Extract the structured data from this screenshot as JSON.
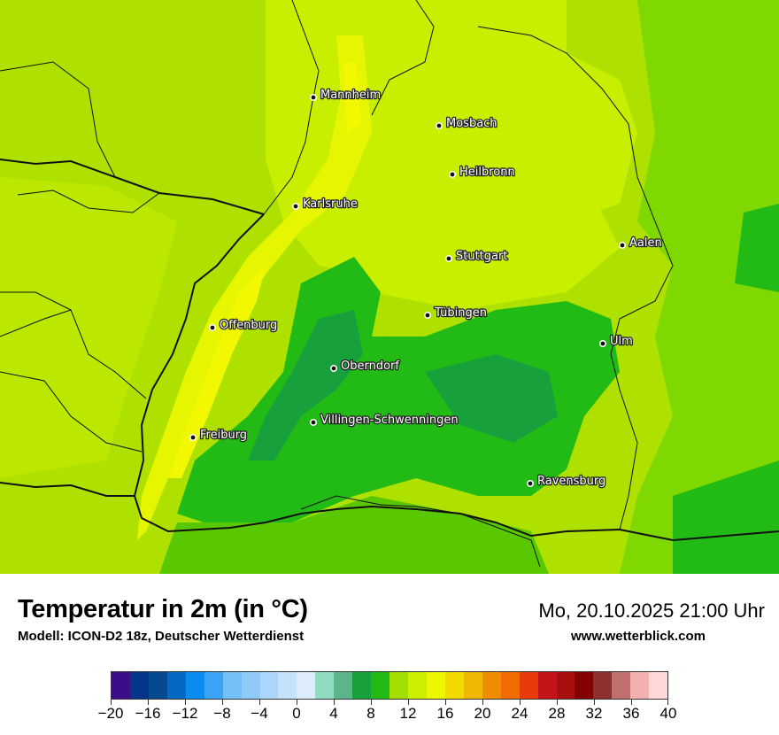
{
  "map": {
    "cities": [
      {
        "name": "Mannheim",
        "dot": [
          354,
          110
        ]
      },
      {
        "name": "Mosbach",
        "dot": [
          496,
          142
        ]
      },
      {
        "name": "Heilbronn",
        "dot": [
          511,
          197
        ]
      },
      {
        "name": "Karlsruhe",
        "dot": [
          334,
          233
        ]
      },
      {
        "name": "Aalen",
        "dot": [
          703,
          277
        ]
      },
      {
        "name": "Stuttgart",
        "dot": [
          507,
          292
        ]
      },
      {
        "name": "Tübingen",
        "dot": [
          483,
          356
        ]
      },
      {
        "name": "Offenburg",
        "dot": [
          240,
          370
        ]
      },
      {
        "name": "Ulm",
        "dot": [
          681,
          388
        ]
      },
      {
        "name": "Oberndorf",
        "dot": [
          377,
          416
        ]
      },
      {
        "name": "Villingen-Schwenningen",
        "dot": [
          354,
          477
        ]
      },
      {
        "name": "Freiburg",
        "dot": [
          218,
          494
        ]
      },
      {
        "name": "Ravensburg",
        "dot": [
          599,
          546
        ]
      }
    ]
  },
  "footer": {
    "title": "Temperatur in 2m (in °C)",
    "subtitle": "Modell: ICON-D2 18z, Deutscher Wetterdienst",
    "datetime": "Mo, 20.10.2025 21:00 Uhr",
    "website": "www.wetterblick.com"
  },
  "legend": {
    "min": -20,
    "max": 40,
    "tick_labels": [
      "−20",
      "−16",
      "−12",
      "−8",
      "−4",
      "0",
      "4",
      "8",
      "12",
      "16",
      "20",
      "24",
      "28",
      "32",
      "36",
      "40"
    ],
    "tick_values": [
      -20,
      -16,
      -12,
      -8,
      -4,
      0,
      4,
      8,
      12,
      16,
      20,
      24,
      28,
      32,
      36,
      40
    ],
    "colors": [
      "#3a0d8a",
      "#05358a",
      "#054a8f",
      "#0469c2",
      "#0a8bf0",
      "#3ba4f7",
      "#73bff8",
      "#8fcbf8",
      "#a9d6fa",
      "#c6e2fb",
      "#dcecfc",
      "#8fdcc0",
      "#5cb58a",
      "#17a03c",
      "#22bb16",
      "#a3de00",
      "#cdee00",
      "#edf700",
      "#f2d900",
      "#f0b800",
      "#f08c00",
      "#f06c00",
      "#e83a0a",
      "#c4141a",
      "#a81010",
      "#840000",
      "#8c3030",
      "#c07070",
      "#f2b0b0",
      "#ffd8d8"
    ]
  }
}
